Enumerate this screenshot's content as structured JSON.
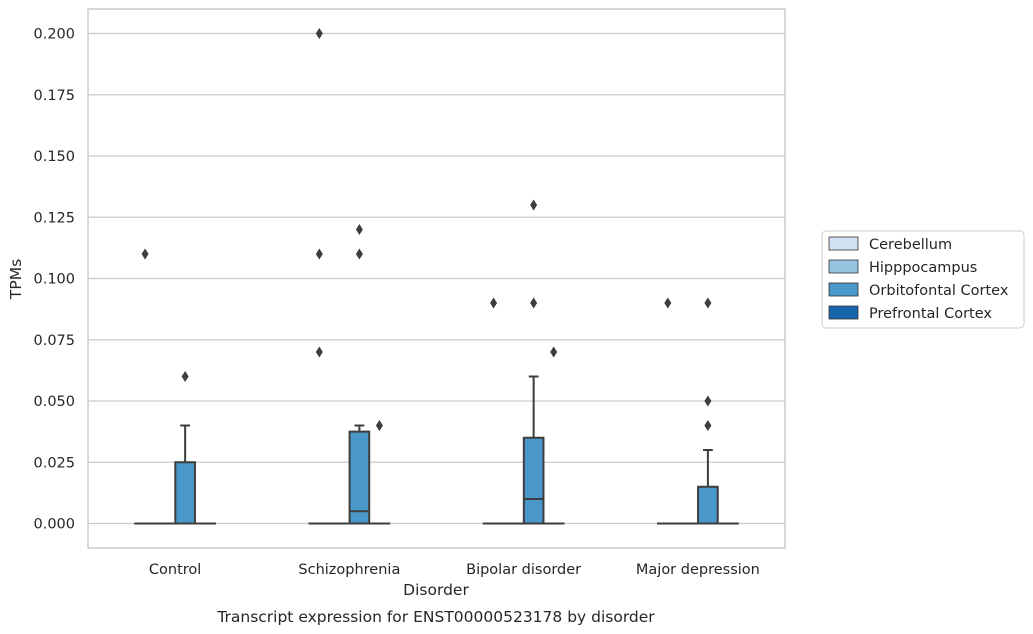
{
  "chart_data": {
    "type": "box",
    "title": "",
    "xlabel": "Disorder",
    "ylabel": "TPMs",
    "caption": "Transcript expression for ENST00000523178 by disorder",
    "categories": [
      "Control",
      "Schizophrenia",
      "Bipolar disorder",
      "Major depression"
    ],
    "ylim": [
      -0.01,
      0.21
    ],
    "yticks": [
      0.0,
      0.025,
      0.05,
      0.075,
      0.1,
      0.125,
      0.15,
      0.175,
      0.2
    ],
    "ytick_labels": [
      "0.000",
      "0.025",
      "0.050",
      "0.075",
      "0.100",
      "0.125",
      "0.150",
      "0.175",
      "0.200"
    ],
    "grid": "horizontal",
    "legend_position": "right",
    "series": [
      {
        "name": "Cerebellum",
        "color": "#d0e1f2",
        "boxes": [
          {
            "q1": 0,
            "median": 0,
            "q3": 0,
            "whisker_low": 0,
            "whisker_high": 0,
            "outliers": [
              0.11
            ]
          },
          {
            "q1": 0,
            "median": 0,
            "q3": 0,
            "whisker_low": 0,
            "whisker_high": 0,
            "outliers": [
              0.11,
              0.07,
              0.2
            ]
          },
          {
            "q1": 0,
            "median": 0,
            "q3": 0,
            "whisker_low": 0,
            "whisker_high": 0,
            "outliers": [
              0.09
            ]
          },
          {
            "q1": 0,
            "median": 0,
            "q3": 0,
            "whisker_low": 0,
            "whisker_high": 0,
            "outliers": [
              0.09
            ]
          }
        ]
      },
      {
        "name": "Hipppocampus",
        "color": "#94c4df",
        "boxes": [
          {
            "q1": 0,
            "median": 0,
            "q3": 0,
            "whisker_low": 0,
            "whisker_high": 0,
            "outliers": []
          },
          {
            "q1": 0,
            "median": 0,
            "q3": 0,
            "whisker_low": 0,
            "whisker_high": 0,
            "outliers": []
          },
          {
            "q1": 0,
            "median": 0,
            "q3": 0,
            "whisker_low": 0,
            "whisker_high": 0,
            "outliers": []
          },
          {
            "q1": 0,
            "median": 0,
            "q3": 0,
            "whisker_low": 0,
            "whisker_high": 0,
            "outliers": []
          }
        ]
      },
      {
        "name": "Orbitofontal Cortex",
        "color": "#4a98c9",
        "boxes": [
          {
            "q1": 0,
            "median": 0,
            "q3": 0.025,
            "whisker_low": 0,
            "whisker_high": 0.04,
            "outliers": [
              0.06
            ]
          },
          {
            "q1": 0,
            "median": 0.005,
            "q3": 0.0375,
            "whisker_low": 0,
            "whisker_high": 0.04,
            "outliers": [
              0.11,
              0.12
            ]
          },
          {
            "q1": 0,
            "median": 0.01,
            "q3": 0.035,
            "whisker_low": 0,
            "whisker_high": 0.06,
            "outliers": [
              0.09,
              0.13
            ]
          },
          {
            "q1": 0,
            "median": 0,
            "q3": 0.015,
            "whisker_low": 0,
            "whisker_high": 0.03,
            "outliers": [
              0.09,
              0.05,
              0.04
            ]
          }
        ]
      },
      {
        "name": "Prefrontal Cortex",
        "color": "#1764ab",
        "boxes": [
          {
            "q1": 0,
            "median": 0,
            "q3": 0,
            "whisker_low": 0,
            "whisker_high": 0,
            "outliers": []
          },
          {
            "q1": 0,
            "median": 0,
            "q3": 0,
            "whisker_low": 0,
            "whisker_high": 0,
            "outliers": [
              0.04
            ]
          },
          {
            "q1": 0,
            "median": 0,
            "q3": 0,
            "whisker_low": 0,
            "whisker_high": 0,
            "outliers": [
              0.07
            ]
          },
          {
            "q1": 0,
            "median": 0,
            "q3": 0,
            "whisker_low": 0,
            "whisker_high": 0,
            "outliers": []
          }
        ]
      }
    ]
  }
}
